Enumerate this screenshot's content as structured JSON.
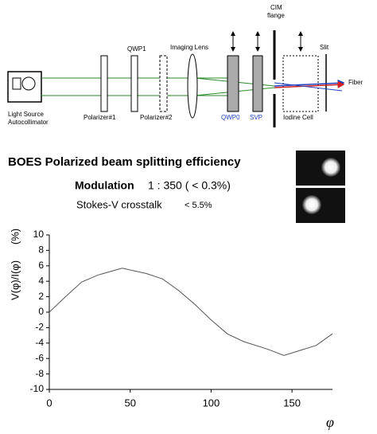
{
  "diagram": {
    "cim_flange": [
      "CIM",
      "flange"
    ],
    "qwp1": "QWP1",
    "imaging_lens": "Imaging Lens",
    "slit": "Slit",
    "fiber": "Fiber",
    "light_source": [
      "Light Source",
      "Autocollimator"
    ],
    "polarizer1": "Polarizer#1",
    "polarizer2": "Polarizer#2",
    "qwp0": "QWP0",
    "svp": "SVP",
    "iodine_cell": "Iodine Cell"
  },
  "summary": {
    "title": "BOES Polarized beam splitting efficiency",
    "modulation_label": "Modulation",
    "modulation_value": "1 : 350 ( < 0.3%)",
    "crosstalk_label": "Stokes-V crosstalk",
    "crosstalk_value": "< 5.5%"
  },
  "chart_data": {
    "type": "line",
    "x_label": "φ",
    "y_label": "V(φ)/I(φ)",
    "y_unit": "(%)",
    "x": [
      0,
      10,
      20,
      30,
      45,
      60,
      70,
      80,
      90,
      100,
      110,
      120,
      135,
      145,
      165,
      175
    ],
    "values": [
      0,
      2,
      3.9,
      4.8,
      5.7,
      5,
      4.3,
      2.8,
      1,
      -1,
      -2.8,
      -3.8,
      -4.8,
      -5.6,
      -4.3,
      -2.8
    ],
    "color": "#555555",
    "xlim": [
      0,
      175
    ],
    "ylim": [
      -10,
      10
    ],
    "xticks": [
      0,
      50,
      100,
      150
    ],
    "yticks": [
      10,
      8,
      6,
      4,
      2,
      0,
      -2,
      -4,
      -6,
      -8,
      -10
    ]
  }
}
